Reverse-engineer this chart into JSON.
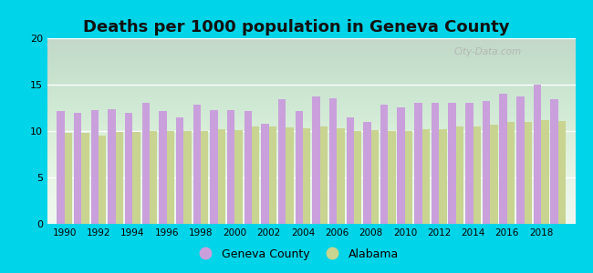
{
  "title": "Deaths per 1000 population in Geneva County",
  "years": [
    1990,
    1991,
    1992,
    1993,
    1994,
    1995,
    1996,
    1997,
    1998,
    1999,
    2000,
    2001,
    2002,
    2003,
    2004,
    2005,
    2006,
    2007,
    2008,
    2009,
    2010,
    2011,
    2012,
    2013,
    2014,
    2015,
    2016,
    2017,
    2018,
    2019
  ],
  "geneva": [
    12.2,
    12.0,
    12.3,
    12.4,
    12.0,
    13.0,
    12.2,
    11.5,
    12.8,
    12.3,
    12.3,
    12.2,
    10.8,
    13.4,
    12.2,
    13.7,
    13.5,
    11.5,
    11.0,
    12.8,
    12.5,
    13.0,
    13.0,
    13.0,
    13.0,
    13.2,
    14.0,
    13.7,
    15.0,
    13.4
  ],
  "alabama": [
    9.8,
    9.8,
    9.5,
    9.9,
    9.9,
    10.0,
    10.0,
    10.0,
    10.0,
    10.2,
    10.1,
    10.5,
    10.5,
    10.4,
    10.3,
    10.5,
    10.3,
    10.0,
    10.1,
    10.0,
    10.0,
    10.2,
    10.2,
    10.5,
    10.5,
    10.7,
    11.0,
    11.0,
    11.2,
    11.1
  ],
  "geneva_color": "#c9a0dc",
  "alabama_color": "#c8d490",
  "outer_bg": "#00d4e8",
  "ylim": [
    0,
    20
  ],
  "yticks": [
    0,
    5,
    10,
    15,
    20
  ],
  "xtick_labels": [
    "1990",
    "1992",
    "1994",
    "1996",
    "1998",
    "2000",
    "2002",
    "2004",
    "2006",
    "2008",
    "2010",
    "2012",
    "2014",
    "2016",
    "2018"
  ],
  "xtick_positions": [
    1990,
    1992,
    1994,
    1996,
    1998,
    2000,
    2002,
    2004,
    2006,
    2008,
    2010,
    2012,
    2014,
    2016,
    2018
  ],
  "legend_geneva": "Geneva County",
  "legend_alabama": "Alabama",
  "title_fontsize": 13,
  "bar_width": 0.45,
  "watermark": "City-Data.com"
}
